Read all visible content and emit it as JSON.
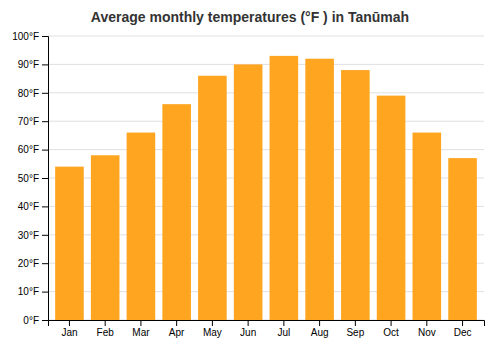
{
  "chart_data": {
    "type": "bar",
    "title": "Average monthly temperatures (°F ) in Tanūmah",
    "categories": [
      "Jan",
      "Feb",
      "Mar",
      "Apr",
      "May",
      "Jun",
      "Jul",
      "Aug",
      "Sep",
      "Oct",
      "Nov",
      "Dec"
    ],
    "values": [
      54,
      58,
      66,
      76,
      86,
      90,
      93,
      92,
      88,
      79,
      66,
      57
    ],
    "color": "#FFA520",
    "ylim": [
      0,
      100
    ],
    "yticks": [
      {
        "value": 0,
        "label": "0°F"
      },
      {
        "value": 10,
        "label": "10°F"
      },
      {
        "value": 20,
        "label": "20°F"
      },
      {
        "value": 30,
        "label": "30°F"
      },
      {
        "value": 40,
        "label": "40°F"
      },
      {
        "value": 50,
        "label": "50°F"
      },
      {
        "value": 60,
        "label": "60°F"
      },
      {
        "value": 70,
        "label": "70°F"
      },
      {
        "value": 80,
        "label": "80°F"
      },
      {
        "value": 90,
        "label": "90°F"
      },
      {
        "value": 100,
        "label": "100°F"
      }
    ],
    "grid": true
  }
}
